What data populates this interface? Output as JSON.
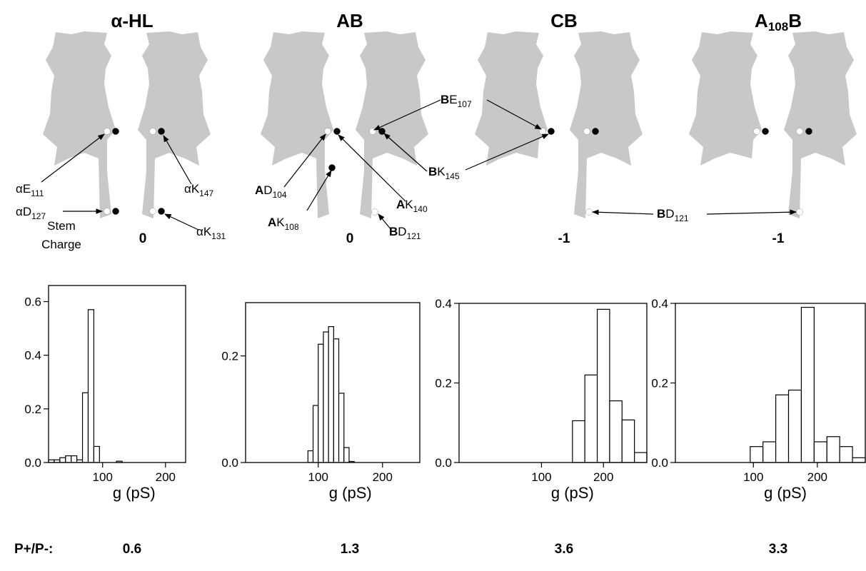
{
  "panels": [
    {
      "title": "α-HL",
      "stem_charge": 0,
      "ratio": 0.6,
      "labels": [
        {
          "text": "αE",
          "sub": "111"
        },
        {
          "text": "αK",
          "sub": "147"
        },
        {
          "text": "αD",
          "sub": "127"
        },
        {
          "text": "αK",
          "sub": "131"
        }
      ]
    },
    {
      "title": "AB",
      "stem_charge": 0,
      "ratio": 1.3,
      "labels": [
        {
          "bold": "A",
          "text": "D",
          "sub": "104"
        },
        {
          "bold": "A",
          "text": "K",
          "sub": "108"
        },
        {
          "bold": "B",
          "text": "D",
          "sub": "121"
        },
        {
          "bold": "A",
          "text": "K",
          "sub": "140"
        },
        {
          "bold": "B",
          "text": "E",
          "sub": "107"
        },
        {
          "bold": "B",
          "text": "K",
          "sub": "145"
        }
      ]
    },
    {
      "title": "CB",
      "stem_charge": -1,
      "ratio": 3.6,
      "labels": [
        {
          "bold": "B",
          "text": "D",
          "sub": "121"
        }
      ]
    },
    {
      "title": {
        "text": "A",
        "sub": "108",
        "after": "B"
      },
      "stem_charge": -1,
      "ratio": 3.3,
      "labels": []
    }
  ],
  "stem_charge_label": [
    "Stem",
    "Charge"
  ],
  "ratio_label": "P+/P-:",
  "chart_data": [
    {
      "type": "histogram",
      "x_label": "g (pS)",
      "color": "#ffffff",
      "bins": [
        14,
        23,
        32,
        41,
        50,
        59,
        68,
        77,
        86,
        95,
        104,
        113,
        122,
        131
      ],
      "values": [
        0.01,
        0.01,
        0.018,
        0.025,
        0.025,
        0.01,
        0.26,
        0.57,
        0.06,
        0,
        0,
        0,
        0.005
      ],
      "xlim": [
        14,
        232
      ],
      "xticks": [
        100,
        200
      ],
      "ylim": [
        0,
        0.66
      ],
      "yticks": [
        {
          "value": 0,
          "label": "0.0"
        },
        0.2,
        0.4,
        0.6
      ]
    },
    {
      "type": "histogram",
      "x_label": "g (pS)",
      "color": "#ffffff",
      "bins": [
        84,
        92,
        100,
        108,
        116,
        124,
        132,
        140,
        148,
        156
      ],
      "values": [
        0.022,
        0.107,
        0.222,
        0.245,
        0.255,
        0.232,
        0.13,
        0.028,
        0.002
      ],
      "xlim": [
        -13,
        258
      ],
      "xticks": [
        100,
        200
      ],
      "ylim": [
        0,
        0.3
      ],
      "yticks": [
        {
          "value": 0,
          "label": "0.0"
        },
        0.2
      ]
    },
    {
      "type": "histogram",
      "x_label": "g (pS)",
      "color": "#ffffff",
      "bins": [
        150,
        170,
        190,
        210,
        230,
        250,
        270
      ],
      "values": [
        0.105,
        0.22,
        0.385,
        0.155,
        0.107,
        0.025
      ],
      "xlim": [
        -33,
        270
      ],
      "xticks": [
        100,
        200
      ],
      "ylim": [
        0,
        0.4
      ],
      "yticks": [
        {
          "value": 0,
          "label": "0.0"
        },
        0.2,
        0.4
      ]
    },
    {
      "type": "histogram",
      "x_label": "g (pS)",
      "color": "#ffffff",
      "bins": [
        95,
        115,
        135,
        155,
        175,
        195,
        215,
        235,
        255,
        275
      ],
      "values": [
        0.04,
        0.052,
        0.17,
        0.182,
        0.39,
        0.052,
        0.065,
        0.04,
        0.012
      ],
      "xlim": [
        -22,
        275
      ],
      "xticks": [
        100,
        200
      ],
      "ylim": [
        0,
        0.4
      ],
      "yticks": [
        {
          "value": 0,
          "label": "0.0"
        },
        0.2,
        0.4
      ]
    }
  ]
}
